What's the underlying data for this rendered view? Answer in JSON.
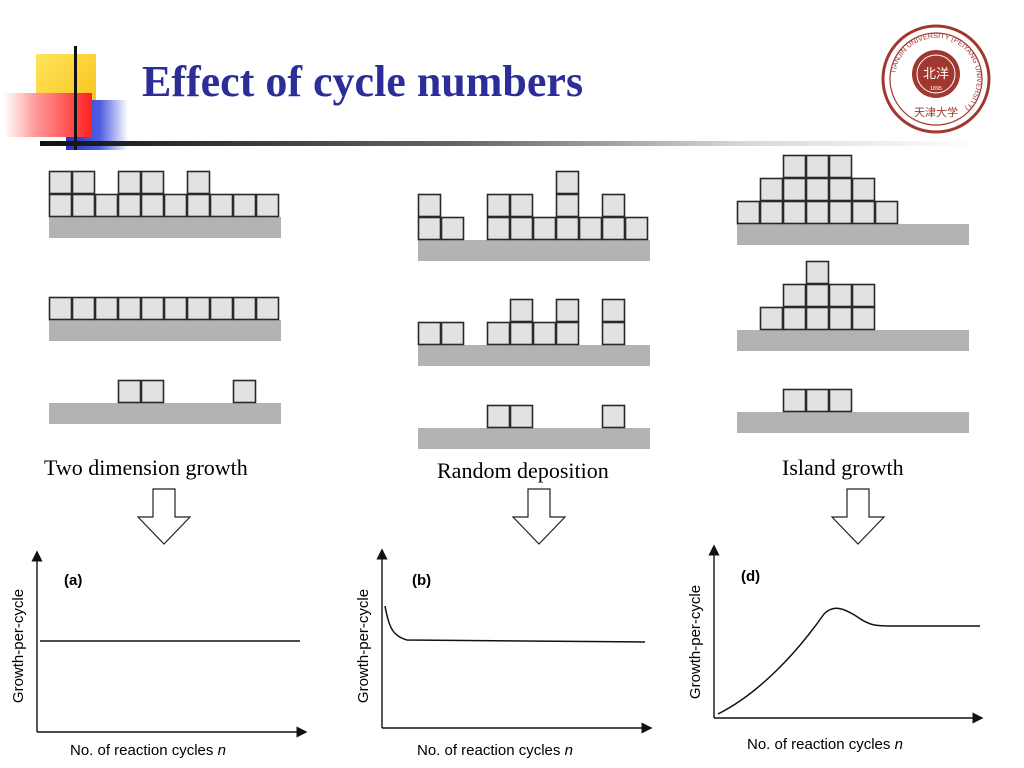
{
  "slide": {
    "title": "Effect of cycle numbers"
  },
  "logo": {
    "ring_text": "TIANJIN UNIVERSITY (PEIYANG UNIVERSITY)",
    "year": "1895",
    "bottom_text": "天津大学",
    "center_text": "北洋",
    "color": "#a0382f"
  },
  "growth_modes": [
    {
      "caption": "Two dimension growth",
      "stages": [
        {
          "columns": [
            2,
            2,
            1,
            2,
            2,
            1,
            2,
            1,
            1,
            1
          ]
        },
        {
          "columns": [
            1,
            1,
            1,
            1,
            1,
            1,
            1,
            1,
            1,
            1
          ]
        },
        {
          "columns": [
            0,
            0,
            0,
            1,
            1,
            0,
            0,
            0,
            1,
            0
          ]
        }
      ]
    },
    {
      "caption": "Random deposition",
      "stages": [
        {
          "columns": [
            2,
            1,
            0,
            2,
            2,
            1,
            3,
            1,
            2,
            1
          ]
        },
        {
          "columns": [
            1,
            1,
            0,
            1,
            2,
            1,
            2,
            0,
            2,
            0
          ]
        },
        {
          "columns": [
            0,
            0,
            0,
            1,
            1,
            0,
            0,
            0,
            1,
            0
          ]
        }
      ]
    },
    {
      "caption": "Island growth",
      "stages": [
        {
          "columns": [
            1,
            2,
            3,
            3,
            3,
            2,
            1
          ]
        },
        {
          "columns": [
            0,
            1,
            2,
            3,
            2,
            2,
            0
          ]
        },
        {
          "columns": [
            0,
            0,
            1,
            1,
            1,
            0,
            0
          ]
        }
      ]
    }
  ],
  "graphs": [
    {
      "label": "(a)",
      "ylabel": "Growth-per-cycle",
      "xlabel": "No. of reaction cycles",
      "xvar": "n",
      "curve_shape": "constant"
    },
    {
      "label": "(b)",
      "ylabel": "Growth-per-cycle",
      "xlabel": "No. of reaction cycles",
      "xvar": "n",
      "curve_shape": "initial decay then constant"
    },
    {
      "label": "(d)",
      "ylabel": "Growth-per-cycle",
      "xlabel": "No. of reaction cycles",
      "xvar": "n",
      "curve_shape": "rise, peak, slight decline then constant"
    }
  ],
  "colors": {
    "title": "#2d2d9a",
    "block_fill": "#e2e2e2",
    "block_stroke": "#2a2a2a",
    "substrate": "#b3b3b3",
    "deco_yellow": "#ffd23f",
    "deco_blue": "#2f3fd0",
    "deco_red": "#ff2a2a"
  }
}
